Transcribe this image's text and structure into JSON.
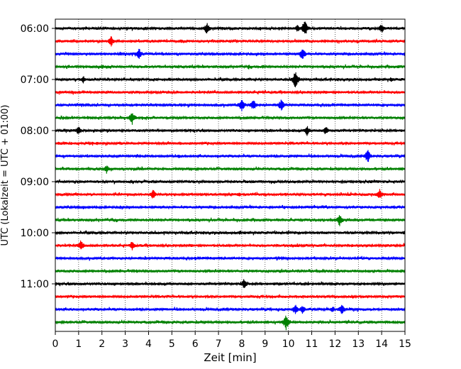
{
  "chart_data": {
    "type": "line",
    "title": "",
    "xlabel": "Zeit  [min]",
    "ylabel": "UTC (Lokalzeit = UTC + 01:00)",
    "xlim": [
      0,
      15
    ],
    "x_ticks": [
      0,
      1,
      2,
      3,
      4,
      5,
      6,
      7,
      8,
      9,
      10,
      11,
      12,
      13,
      14,
      15
    ],
    "y_ticks": [
      "06:00",
      "07:00",
      "08:00",
      "09:00",
      "10:00",
      "11:00"
    ],
    "grid": "vertical dotted",
    "trace_interval_minutes": 15,
    "first_trace": "06:00",
    "last_trace": "11:45",
    "color_cycle": [
      "#000000",
      "#ff0000",
      "#0000ff",
      "#008000"
    ],
    "series": [
      {
        "start": "06:00",
        "color": "#000000",
        "events": [
          {
            "x": 6.5,
            "amp": 9
          },
          {
            "x": 10.4,
            "amp": 6
          },
          {
            "x": 10.7,
            "amp": 13
          },
          {
            "x": 14.0,
            "amp": 8
          }
        ]
      },
      {
        "start": "06:15",
        "color": "#ff0000",
        "events": [
          {
            "x": 2.4,
            "amp": 8
          },
          {
            "x": 5.4,
            "amp": 3
          }
        ]
      },
      {
        "start": "06:30",
        "color": "#0000ff",
        "events": [
          {
            "x": 3.6,
            "amp": 9
          },
          {
            "x": 10.6,
            "amp": 10
          }
        ]
      },
      {
        "start": "06:45",
        "color": "#008000",
        "events": [
          {
            "x": 2.0,
            "amp": 4
          },
          {
            "x": 8.3,
            "amp": 4
          },
          {
            "x": 8.9,
            "amp": 3
          }
        ]
      },
      {
        "start": "07:00",
        "color": "#000000",
        "events": [
          {
            "x": 1.2,
            "amp": 6
          },
          {
            "x": 10.3,
            "amp": 14
          },
          {
            "x": 14.4,
            "amp": 4
          }
        ]
      },
      {
        "start": "07:15",
        "color": "#ff0000",
        "events": []
      },
      {
        "start": "07:30",
        "color": "#0000ff",
        "events": [
          {
            "x": 8.0,
            "amp": 11
          },
          {
            "x": 8.5,
            "amp": 9
          },
          {
            "x": 9.7,
            "amp": 10
          }
        ]
      },
      {
        "start": "07:45",
        "color": "#008000",
        "events": [
          {
            "x": 3.3,
            "amp": 10
          },
          {
            "x": 1.4,
            "amp": 3
          }
        ]
      },
      {
        "start": "08:00",
        "color": "#000000",
        "events": [
          {
            "x": 1.0,
            "amp": 7
          },
          {
            "x": 10.8,
            "amp": 8
          },
          {
            "x": 11.6,
            "amp": 7
          }
        ]
      },
      {
        "start": "08:15",
        "color": "#ff0000",
        "events": [
          {
            "x": 1.8,
            "amp": 3
          }
        ]
      },
      {
        "start": "08:30",
        "color": "#0000ff",
        "events": [
          {
            "x": 13.4,
            "amp": 11
          },
          {
            "x": 5.3,
            "amp": 3
          }
        ]
      },
      {
        "start": "08:45",
        "color": "#008000",
        "events": [
          {
            "x": 2.2,
            "amp": 7
          }
        ]
      },
      {
        "start": "09:00",
        "color": "#000000",
        "events": [
          {
            "x": 8.5,
            "amp": 3
          }
        ]
      },
      {
        "start": "09:15",
        "color": "#ff0000",
        "events": [
          {
            "x": 4.2,
            "amp": 8
          },
          {
            "x": 7.9,
            "amp": 4
          },
          {
            "x": 13.9,
            "amp": 9
          }
        ]
      },
      {
        "start": "09:30",
        "color": "#0000ff",
        "events": [
          {
            "x": 1.2,
            "amp": 3
          },
          {
            "x": 2.8,
            "amp": 3
          }
        ]
      },
      {
        "start": "09:45",
        "color": "#008000",
        "events": [
          {
            "x": 12.2,
            "amp": 10
          }
        ]
      },
      {
        "start": "10:00",
        "color": "#000000",
        "events": [
          {
            "x": 7.9,
            "amp": 3
          },
          {
            "x": 15.0,
            "amp": 4
          }
        ]
      },
      {
        "start": "10:15",
        "color": "#ff0000",
        "events": [
          {
            "x": 1.1,
            "amp": 9
          },
          {
            "x": 3.3,
            "amp": 8
          }
        ]
      },
      {
        "start": "10:30",
        "color": "#0000ff",
        "events": [
          {
            "x": 6.0,
            "amp": 3
          }
        ]
      },
      {
        "start": "10:45",
        "color": "#008000",
        "events": [
          {
            "x": 3.5,
            "amp": 3
          }
        ]
      },
      {
        "start": "11:00",
        "color": "#000000",
        "events": [
          {
            "x": 8.1,
            "amp": 8
          }
        ]
      },
      {
        "start": "11:15",
        "color": "#ff0000",
        "events": []
      },
      {
        "start": "11:30",
        "color": "#0000ff",
        "events": [
          {
            "x": 10.3,
            "amp": 8
          },
          {
            "x": 10.6,
            "amp": 7
          },
          {
            "x": 12.3,
            "amp": 9
          },
          {
            "x": 11.9,
            "amp": 5
          }
        ]
      },
      {
        "start": "11:45",
        "color": "#008000",
        "events": [
          {
            "x": 9.9,
            "amp": 12
          }
        ]
      }
    ]
  }
}
